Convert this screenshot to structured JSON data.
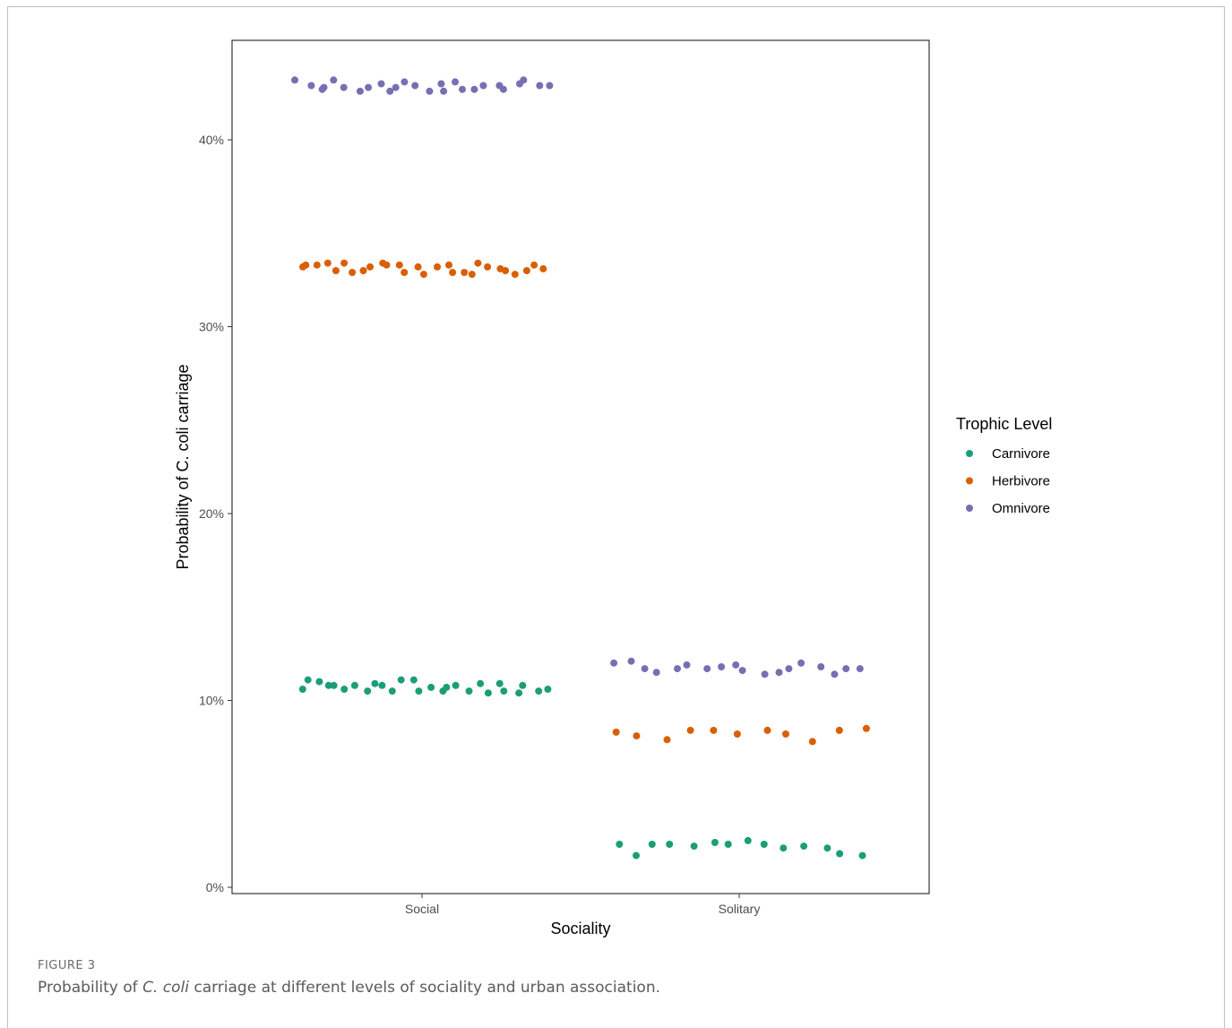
{
  "figure": {
    "label": "FIGURE 3",
    "caption_pre": "Probability of ",
    "caption_italic": "C. coli",
    "caption_post": " carriage at different levels of sociality and urban association."
  },
  "chart_data": {
    "type": "scatter",
    "title": "",
    "xlabel": "Sociality",
    "ylabel": "Probability of C. coli carriage",
    "categories": [
      "Social",
      "Solitary"
    ],
    "ylim": [
      0,
      45.5
    ],
    "yticks": [
      0,
      10,
      20,
      30,
      40
    ],
    "ytick_labels": [
      "0%",
      "10%",
      "20%",
      "30%",
      "40%"
    ],
    "grid": false,
    "legend": {
      "title": "Trophic Level",
      "position": "right"
    },
    "colors": {
      "Carnivore": "#1b9e77",
      "Herbivore": "#d95f02",
      "Omnivore": "#7570b3"
    },
    "series": [
      {
        "name": "Omnivore",
        "points": [
          {
            "x": "Social",
            "y": 43.2
          },
          {
            "x": "Social",
            "y": 42.9
          },
          {
            "x": "Social",
            "y": 42.7
          },
          {
            "x": "Social",
            "y": 42.8
          },
          {
            "x": "Social",
            "y": 43.2
          },
          {
            "x": "Social",
            "y": 42.8
          },
          {
            "x": "Social",
            "y": 42.6
          },
          {
            "x": "Social",
            "y": 42.8
          },
          {
            "x": "Social",
            "y": 43.0
          },
          {
            "x": "Social",
            "y": 42.6
          },
          {
            "x": "Social",
            "y": 42.8
          },
          {
            "x": "Social",
            "y": 43.1
          },
          {
            "x": "Social",
            "y": 42.9
          },
          {
            "x": "Social",
            "y": 42.6
          },
          {
            "x": "Social",
            "y": 43.0
          },
          {
            "x": "Social",
            "y": 42.6
          },
          {
            "x": "Social",
            "y": 43.1
          },
          {
            "x": "Social",
            "y": 42.7
          },
          {
            "x": "Social",
            "y": 42.7
          },
          {
            "x": "Social",
            "y": 42.9
          },
          {
            "x": "Social",
            "y": 42.9
          },
          {
            "x": "Social",
            "y": 42.7
          },
          {
            "x": "Social",
            "y": 43.0
          },
          {
            "x": "Social",
            "y": 43.2
          },
          {
            "x": "Social",
            "y": 42.9
          },
          {
            "x": "Social",
            "y": 42.9
          },
          {
            "x": "Solitary",
            "y": 12.0
          },
          {
            "x": "Solitary",
            "y": 12.1
          },
          {
            "x": "Solitary",
            "y": 11.7
          },
          {
            "x": "Solitary",
            "y": 11.5
          },
          {
            "x": "Solitary",
            "y": 11.7
          },
          {
            "x": "Solitary",
            "y": 11.9
          },
          {
            "x": "Solitary",
            "y": 11.7
          },
          {
            "x": "Solitary",
            "y": 11.8
          },
          {
            "x": "Solitary",
            "y": 11.9
          },
          {
            "x": "Solitary",
            "y": 11.6
          },
          {
            "x": "Solitary",
            "y": 11.4
          },
          {
            "x": "Solitary",
            "y": 11.5
          },
          {
            "x": "Solitary",
            "y": 11.7
          },
          {
            "x": "Solitary",
            "y": 12.0
          },
          {
            "x": "Solitary",
            "y": 11.8
          },
          {
            "x": "Solitary",
            "y": 11.4
          },
          {
            "x": "Solitary",
            "y": 11.7
          },
          {
            "x": "Solitary",
            "y": 11.7
          }
        ]
      },
      {
        "name": "Herbivore",
        "points": [
          {
            "x": "Social",
            "y": 33.2
          },
          {
            "x": "Social",
            "y": 33.3
          },
          {
            "x": "Social",
            "y": 33.3
          },
          {
            "x": "Social",
            "y": 33.4
          },
          {
            "x": "Social",
            "y": 33.0
          },
          {
            "x": "Social",
            "y": 33.4
          },
          {
            "x": "Social",
            "y": 32.9
          },
          {
            "x": "Social",
            "y": 33.0
          },
          {
            "x": "Social",
            "y": 33.2
          },
          {
            "x": "Social",
            "y": 33.4
          },
          {
            "x": "Social",
            "y": 33.3
          },
          {
            "x": "Social",
            "y": 33.3
          },
          {
            "x": "Social",
            "y": 32.9
          },
          {
            "x": "Social",
            "y": 33.2
          },
          {
            "x": "Social",
            "y": 32.8
          },
          {
            "x": "Social",
            "y": 33.2
          },
          {
            "x": "Social",
            "y": 33.3
          },
          {
            "x": "Social",
            "y": 32.9
          },
          {
            "x": "Social",
            "y": 32.9
          },
          {
            "x": "Social",
            "y": 32.8
          },
          {
            "x": "Social",
            "y": 33.4
          },
          {
            "x": "Social",
            "y": 33.2
          },
          {
            "x": "Social",
            "y": 33.1
          },
          {
            "x": "Social",
            "y": 33.0
          },
          {
            "x": "Social",
            "y": 32.8
          },
          {
            "x": "Social",
            "y": 33.0
          },
          {
            "x": "Social",
            "y": 33.3
          },
          {
            "x": "Social",
            "y": 33.1
          },
          {
            "x": "Solitary",
            "y": 8.3
          },
          {
            "x": "Solitary",
            "y": 8.1
          },
          {
            "x": "Solitary",
            "y": 7.9
          },
          {
            "x": "Solitary",
            "y": 8.4
          },
          {
            "x": "Solitary",
            "y": 8.4
          },
          {
            "x": "Solitary",
            "y": 8.2
          },
          {
            "x": "Solitary",
            "y": 8.4
          },
          {
            "x": "Solitary",
            "y": 8.2
          },
          {
            "x": "Solitary",
            "y": 7.8
          },
          {
            "x": "Solitary",
            "y": 8.4
          },
          {
            "x": "Solitary",
            "y": 8.5
          }
        ]
      },
      {
        "name": "Carnivore",
        "points": [
          {
            "x": "Social",
            "y": 10.6
          },
          {
            "x": "Social",
            "y": 11.1
          },
          {
            "x": "Social",
            "y": 11.0
          },
          {
            "x": "Social",
            "y": 10.8
          },
          {
            "x": "Social",
            "y": 10.8
          },
          {
            "x": "Social",
            "y": 10.6
          },
          {
            "x": "Social",
            "y": 10.8
          },
          {
            "x": "Social",
            "y": 10.5
          },
          {
            "x": "Social",
            "y": 10.9
          },
          {
            "x": "Social",
            "y": 10.8
          },
          {
            "x": "Social",
            "y": 10.5
          },
          {
            "x": "Social",
            "y": 11.1
          },
          {
            "x": "Social",
            "y": 11.1
          },
          {
            "x": "Social",
            "y": 10.5
          },
          {
            "x": "Social",
            "y": 10.7
          },
          {
            "x": "Social",
            "y": 10.5
          },
          {
            "x": "Social",
            "y": 10.7
          },
          {
            "x": "Social",
            "y": 10.8
          },
          {
            "x": "Social",
            "y": 10.5
          },
          {
            "x": "Social",
            "y": 10.9
          },
          {
            "x": "Social",
            "y": 10.4
          },
          {
            "x": "Social",
            "y": 10.9
          },
          {
            "x": "Social",
            "y": 10.5
          },
          {
            "x": "Social",
            "y": 10.4
          },
          {
            "x": "Social",
            "y": 10.8
          },
          {
            "x": "Social",
            "y": 10.5
          },
          {
            "x": "Social",
            "y": 10.6
          },
          {
            "x": "Solitary",
            "y": 2.3
          },
          {
            "x": "Solitary",
            "y": 1.7
          },
          {
            "x": "Solitary",
            "y": 2.3
          },
          {
            "x": "Solitary",
            "y": 2.3
          },
          {
            "x": "Solitary",
            "y": 2.2
          },
          {
            "x": "Solitary",
            "y": 2.4
          },
          {
            "x": "Solitary",
            "y": 2.3
          },
          {
            "x": "Solitary",
            "y": 2.5
          },
          {
            "x": "Solitary",
            "y": 2.3
          },
          {
            "x": "Solitary",
            "y": 2.1
          },
          {
            "x": "Solitary",
            "y": 2.2
          },
          {
            "x": "Solitary",
            "y": 2.1
          },
          {
            "x": "Solitary",
            "y": 1.8
          },
          {
            "x": "Solitary",
            "y": 1.7
          }
        ]
      }
    ]
  }
}
